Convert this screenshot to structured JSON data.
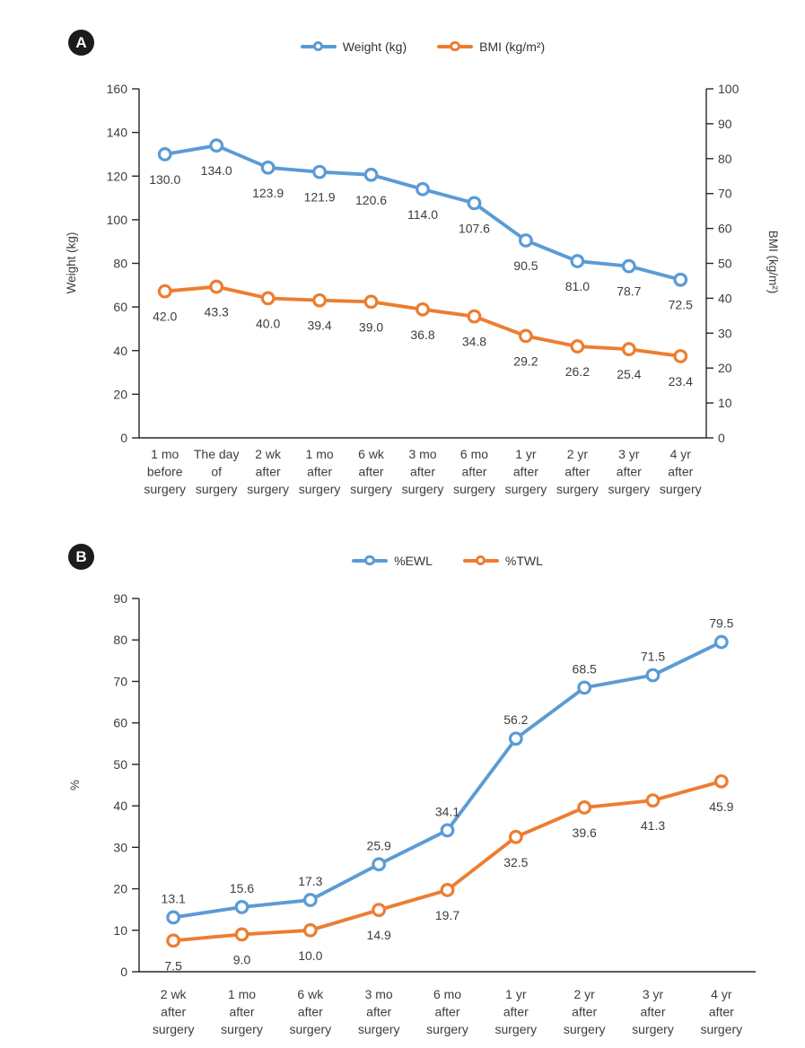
{
  "colors": {
    "series_blue": "#5B9BD5",
    "series_orange": "#ED7D31",
    "axis_line": "#262626",
    "text": "#3d3d3d",
    "badge_background": "#1e1b1c",
    "badge_text": "#ffffff"
  },
  "panels": [
    {
      "badge": "A",
      "legend": [
        {
          "label": "Weight (kg)",
          "color": "#5B9BD5",
          "marker": "line-with-ring-icon"
        },
        {
          "label": "BMI (kg/m²)",
          "color": "#ED7D31",
          "marker": "line-with-ring-icon"
        }
      ]
    },
    {
      "badge": "B",
      "legend": [
        {
          "label": "%EWL",
          "color": "#5B9BD5",
          "marker": "line-with-ring-icon"
        },
        {
          "label": "%TWL",
          "color": "#ED7D31",
          "marker": "line-with-ring-icon"
        }
      ]
    }
  ],
  "chart_data": [
    {
      "type": "line",
      "panel": "A",
      "categories": [
        [
          "1 mo",
          "before",
          "surgery"
        ],
        [
          "The day",
          "of",
          "surgery"
        ],
        [
          "2 wk",
          "after",
          "surgery"
        ],
        [
          "1 mo",
          "after",
          "surgery"
        ],
        [
          "6 wk",
          "after",
          "surgery"
        ],
        [
          "3 mo",
          "after",
          "surgery"
        ],
        [
          "6 mo",
          "after",
          "surgery"
        ],
        [
          "1 yr",
          "after",
          "surgery"
        ],
        [
          "2 yr",
          "after",
          "surgery"
        ],
        [
          "3 yr",
          "after",
          "surgery"
        ],
        [
          "4 yr",
          "after",
          "surgery"
        ]
      ],
      "series": [
        {
          "name": "Weight (kg)",
          "axis": "left",
          "color": "#5B9BD5",
          "values": [
            130.0,
            134.0,
            123.9,
            121.9,
            120.6,
            114.0,
            107.6,
            90.5,
            81.0,
            78.7,
            72.5
          ],
          "labels": [
            "130.0",
            "134.0",
            "123.9",
            "121.9",
            "120.6",
            "114.0",
            "107.6",
            "90.5",
            "81.0",
            "78.7",
            "72.5"
          ],
          "label_position": "below"
        },
        {
          "name": "BMI (kg/m²)",
          "axis": "right",
          "color": "#ED7D31",
          "values": [
            42.0,
            43.3,
            40.0,
            39.4,
            39.0,
            36.8,
            34.8,
            29.2,
            26.2,
            25.4,
            23.4
          ],
          "labels": [
            "42.0",
            "43.3",
            "40.0",
            "39.4",
            "39.0",
            "36.8",
            "34.8",
            "29.2",
            "26.2",
            "25.4",
            "23.4"
          ],
          "label_position": "below"
        }
      ],
      "left_axis": {
        "title": "Weight (kg)",
        "min": 0,
        "max": 160,
        "step": 20
      },
      "right_axis": {
        "title": "BMI (kg/m²)",
        "min": 0,
        "max": 100,
        "step": 10
      },
      "grid": false,
      "legend_position": "top"
    },
    {
      "type": "line",
      "panel": "B",
      "categories": [
        [
          "2 wk",
          "after",
          "surgery"
        ],
        [
          "1 mo",
          "after",
          "surgery"
        ],
        [
          "6 wk",
          "after",
          "surgery"
        ],
        [
          "3 mo",
          "after",
          "surgery"
        ],
        [
          "6 mo",
          "after",
          "surgery"
        ],
        [
          "1 yr",
          "after",
          "surgery"
        ],
        [
          "2 yr",
          "after",
          "surgery"
        ],
        [
          "3 yr",
          "after",
          "surgery"
        ],
        [
          "4 yr",
          "after",
          "surgery"
        ]
      ],
      "series": [
        {
          "name": "%EWL",
          "axis": "left",
          "color": "#5B9BD5",
          "values": [
            13.1,
            15.6,
            17.3,
            25.9,
            34.1,
            56.2,
            68.5,
            71.5,
            79.5
          ],
          "labels": [
            "13.1",
            "15.6",
            "17.3",
            "25.9",
            "34.1",
            "56.2",
            "68.5",
            "71.5",
            "79.5"
          ],
          "label_position": "above"
        },
        {
          "name": "%TWL",
          "axis": "left",
          "color": "#ED7D31",
          "values": [
            7.5,
            9.0,
            10.0,
            14.9,
            19.7,
            32.5,
            39.6,
            41.3,
            45.9
          ],
          "labels": [
            "7.5",
            "9.0",
            "10.0",
            "14.9",
            "19.7",
            "32.5",
            "39.6",
            "41.3",
            "45.9"
          ],
          "label_position": "below"
        }
      ],
      "left_axis": {
        "title": "%",
        "min": 0,
        "max": 90,
        "step": 10
      },
      "right_axis": null,
      "grid": false,
      "legend_position": "top"
    }
  ]
}
